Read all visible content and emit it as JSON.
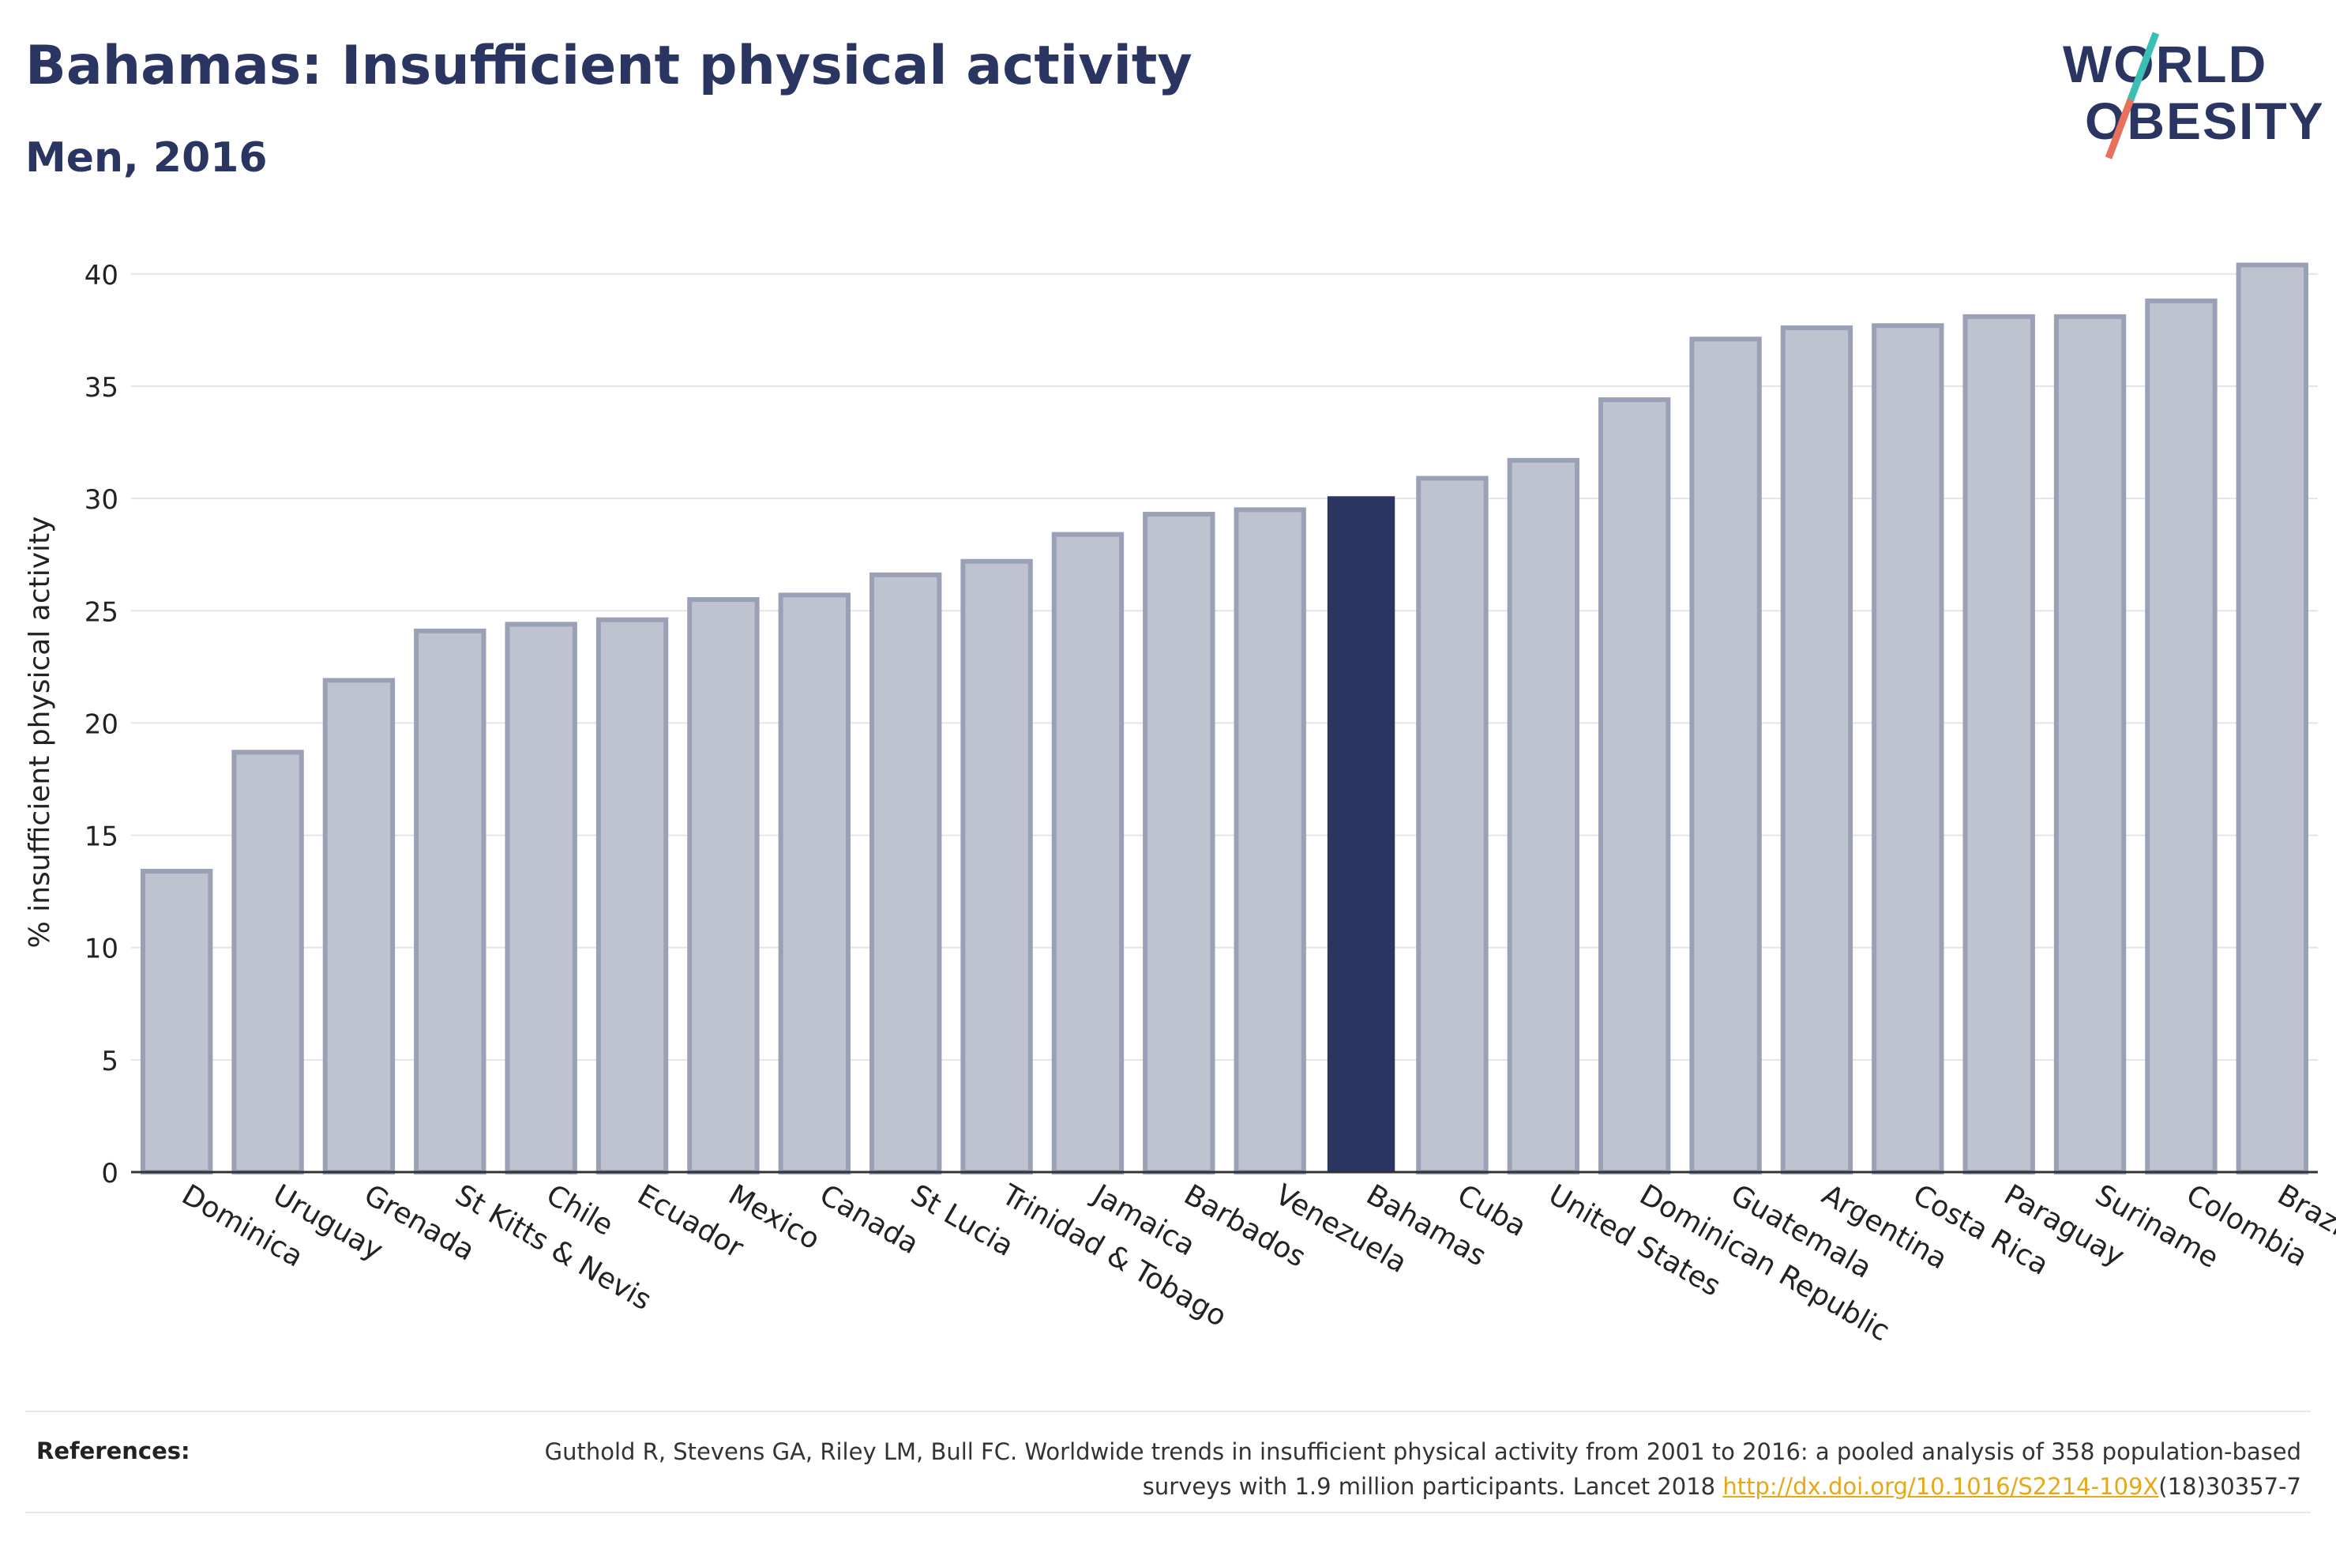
{
  "header": {
    "title": "Bahamas: Insufficient physical activity",
    "subtitle": "Men, 2016"
  },
  "logo": {
    "line1": "WORLD",
    "line2": "OBESITY"
  },
  "colors": {
    "highlight": "#2a3561",
    "bar_fill": "#bfc3d0",
    "bar_stroke": "#9aa1b6",
    "grid": "#e3e5ea",
    "logo_slash_top": "#3bbfb5",
    "logo_slash_bottom": "#e8715e",
    "link": "#e6a817"
  },
  "chart_data": {
    "type": "bar",
    "ylabel": "% insufficient physical activity",
    "ylim": [
      0,
      42
    ],
    "yticks": [
      0,
      5,
      10,
      15,
      20,
      25,
      30,
      35,
      40
    ],
    "grid": true,
    "highlight": "Bahamas",
    "categories": [
      "Dominica",
      "Uruguay",
      "Grenada",
      "St Kitts & Nevis",
      "Chile",
      "Ecuador",
      "Mexico",
      "Canada",
      "St Lucia",
      "Trinidad & Tobago",
      "Jamaica",
      "Barbados",
      "Venezuela",
      "Bahamas",
      "Cuba",
      "United States",
      "Dominican Republic",
      "Guatemala",
      "Argentina",
      "Costa Rica",
      "Paraguay",
      "Suriname",
      "Colombia",
      "Brazil"
    ],
    "values": [
      13.4,
      18.7,
      21.9,
      24.1,
      24.4,
      24.6,
      25.5,
      25.7,
      26.6,
      27.2,
      28.4,
      29.3,
      29.5,
      30.1,
      30.9,
      31.7,
      34.4,
      37.1,
      37.6,
      37.7,
      38.1,
      38.1,
      38.8,
      40.4
    ]
  },
  "references": {
    "label": "References:",
    "text_before": "Guthold R, Stevens GA, Riley LM, Bull FC. Worldwide trends in insufficient physical activity from 2001 to 2016: a pooled analysis of 358 population-based surveys with 1.9 million participants. Lancet 2018 ",
    "link": "http://dx.doi.org/10.1016/S2214-109X",
    "text_after": "(18)30357-7"
  }
}
